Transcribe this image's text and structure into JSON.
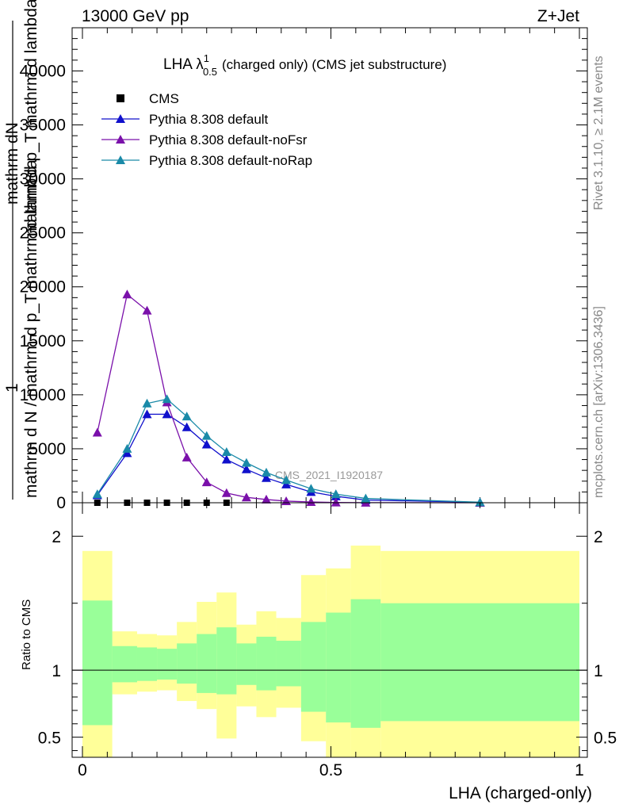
{
  "header": {
    "left": "13000 GeV pp",
    "right": "Z+Jet"
  },
  "side_labels": {
    "rivet": "Rivet 3.1.10, ≥ 2.1M events",
    "mcplots": "mcplots.cern.ch [arXiv:1306.3436]"
  },
  "chart_data": [
    {
      "type": "line",
      "title_main": "LHA λ",
      "title_sup": "1",
      "title_sub": "0.5",
      "title_rest": "(charged only) (CMS jet substructure)",
      "ylabel_top": "mathrm dN",
      "ylabel_top2": "mathrm d p_T mathrm d lambda",
      "ylabel_one": "1",
      "ylabel_bottom": "mathrm d N / mathrm d p_T mathrm d lambda",
      "watermark": "CMS_2021_I1920187",
      "ylim": [
        0,
        44000
      ],
      "yticks": [
        0,
        5000,
        10000,
        15000,
        20000,
        25000,
        30000,
        35000,
        40000
      ],
      "ytick_labels": [
        "0",
        "5000",
        "10000",
        "15000",
        "20000",
        "25000",
        "30000",
        "35000",
        "40000"
      ],
      "xlim": [
        -0.02,
        1.0
      ],
      "series": [
        {
          "name": "CMS",
          "marker": "square",
          "color": "#000000",
          "x": [
            0.03,
            0.09,
            0.13,
            0.17,
            0.21,
            0.25,
            0.29
          ],
          "y": [
            0,
            0,
            0,
            0,
            0,
            0,
            0
          ]
        },
        {
          "name": "Pythia 8.308 default",
          "marker": "triangle",
          "color": "#1010cc",
          "x": [
            0.03,
            0.09,
            0.13,
            0.17,
            0.21,
            0.25,
            0.29,
            0.33,
            0.37,
            0.41,
            0.46,
            0.51,
            0.57,
            0.8
          ],
          "y": [
            700,
            4600,
            8200,
            8200,
            7000,
            5400,
            4000,
            3100,
            2300,
            1700,
            1000,
            600,
            250,
            40
          ]
        },
        {
          "name": "Pythia 8.308 default-noFsr",
          "marker": "triangle",
          "color": "#7a10aa",
          "x": [
            0.03,
            0.09,
            0.13,
            0.17,
            0.21,
            0.25,
            0.29,
            0.33,
            0.37,
            0.41,
            0.46,
            0.51,
            0.57,
            0.8
          ],
          "y": [
            6500,
            19300,
            17800,
            9300,
            4200,
            1900,
            900,
            500,
            300,
            150,
            70,
            30,
            10,
            0
          ]
        },
        {
          "name": "Pythia 8.308 default-noRap",
          "marker": "triangle",
          "color": "#1a8aa8",
          "x": [
            0.03,
            0.09,
            0.13,
            0.17,
            0.21,
            0.25,
            0.29,
            0.33,
            0.37,
            0.41,
            0.46,
            0.51,
            0.57,
            0.8
          ],
          "y": [
            800,
            5000,
            9200,
            9600,
            8000,
            6200,
            4700,
            3700,
            2800,
            2100,
            1300,
            800,
            400,
            50
          ]
        }
      ]
    },
    {
      "type": "area",
      "ylabel": "Ratio to CMS",
      "xlabel": "LHA (charged-only)",
      "xlim": [
        -0.02,
        1.0
      ],
      "ylim": [
        0.35,
        2.25
      ],
      "xticks": [
        0,
        0.5,
        1
      ],
      "xtick_labels": [
        "0",
        "0.5",
        "1"
      ],
      "yticks": [
        0.5,
        1,
        2
      ],
      "ytick_labels": [
        "0.5",
        "1",
        "2"
      ],
      "reference_line": 1,
      "band_colors": {
        "outer": "#ffff99",
        "inner": "#99ff99"
      },
      "bins": [
        {
          "x0": 0.0,
          "x1": 0.06,
          "outer": [
            0.35,
            1.89
          ],
          "inner": [
            0.59,
            1.52
          ]
        },
        {
          "x0": 0.06,
          "x1": 0.11,
          "outer": [
            0.82,
            1.29
          ],
          "inner": [
            0.91,
            1.18
          ]
        },
        {
          "x0": 0.11,
          "x1": 0.15,
          "outer": [
            0.84,
            1.27
          ],
          "inner": [
            0.92,
            1.17
          ]
        },
        {
          "x0": 0.15,
          "x1": 0.19,
          "outer": [
            0.85,
            1.26
          ],
          "inner": [
            0.93,
            1.16
          ]
        },
        {
          "x0": 0.19,
          "x1": 0.23,
          "outer": [
            0.77,
            1.36
          ],
          "inner": [
            0.9,
            1.2
          ]
        },
        {
          "x0": 0.23,
          "x1": 0.27,
          "outer": [
            0.71,
            1.51
          ],
          "inner": [
            0.83,
            1.27
          ]
        },
        {
          "x0": 0.27,
          "x1": 0.31,
          "outer": [
            0.49,
            1.58
          ],
          "inner": [
            0.82,
            1.32
          ]
        },
        {
          "x0": 0.31,
          "x1": 0.35,
          "outer": [
            0.73,
            1.34
          ],
          "inner": [
            0.89,
            1.2
          ]
        },
        {
          "x0": 0.35,
          "x1": 0.39,
          "outer": [
            0.65,
            1.44
          ],
          "inner": [
            0.85,
            1.25
          ]
        },
        {
          "x0": 0.39,
          "x1": 0.44,
          "outer": [
            0.72,
            1.39
          ],
          "inner": [
            0.88,
            1.22
          ]
        },
        {
          "x0": 0.44,
          "x1": 0.49,
          "outer": [
            0.47,
            1.71
          ],
          "inner": [
            0.69,
            1.36
          ]
        },
        {
          "x0": 0.49,
          "x1": 0.54,
          "outer": [
            0.35,
            1.76
          ],
          "inner": [
            0.61,
            1.43
          ]
        },
        {
          "x0": 0.54,
          "x1": 0.6,
          "outer": [
            0.35,
            1.93
          ],
          "inner": [
            0.57,
            1.53
          ]
        },
        {
          "x0": 0.6,
          "x1": 1.0,
          "outer": [
            0.35,
            1.89
          ],
          "inner": [
            0.62,
            1.5
          ]
        }
      ]
    }
  ]
}
